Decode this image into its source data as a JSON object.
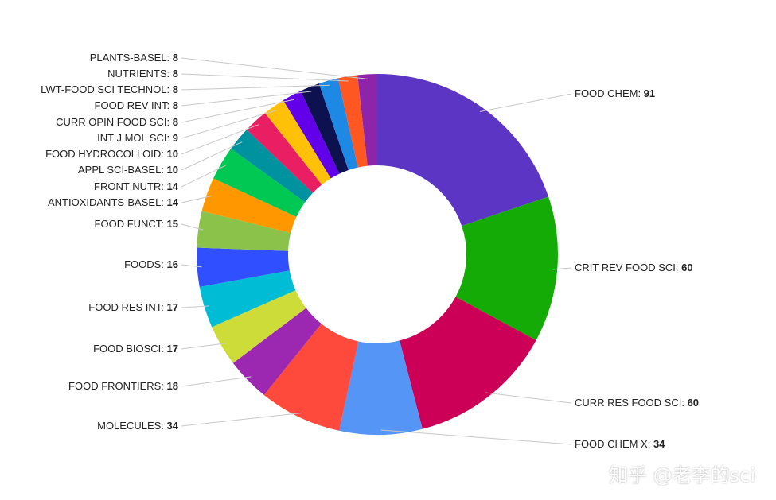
{
  "chart_data": {
    "type": "donut",
    "title": "",
    "slices": [
      {
        "label": "FOOD CHEM",
        "value": 91,
        "color": "#5c35c5"
      },
      {
        "label": "CRIT REV FOOD SCI",
        "value": 60,
        "color": "#15ab06"
      },
      {
        "label": "CURR RES FOOD SCI",
        "value": 60,
        "color": "#cc0056"
      },
      {
        "label": "FOOD CHEM X",
        "value": 34,
        "color": "#5595f5"
      },
      {
        "label": "MOLECULES",
        "value": 34,
        "color": "#fe4a3c"
      },
      {
        "label": "FOOD FRONTIERS",
        "value": 18,
        "color": "#9c27b0"
      },
      {
        "label": "FOOD BIOSCI",
        "value": 17,
        "color": "#cddc39"
      },
      {
        "label": "FOOD RES INT",
        "value": 17,
        "color": "#00bcd4"
      },
      {
        "label": "FOODS",
        "value": 16,
        "color": "#304ffe"
      },
      {
        "label": "FOOD FUNCT",
        "value": 15,
        "color": "#8bc34a"
      },
      {
        "label": "ANTIOXIDANTS-BASEL",
        "value": 14,
        "color": "#ff9800"
      },
      {
        "label": "FRONT NUTR",
        "value": 14,
        "color": "#00c853"
      },
      {
        "label": "APPL SCI-BASEL",
        "value": 10,
        "color": "#00939f"
      },
      {
        "label": "FOOD HYDROCOLLOID",
        "value": 10,
        "color": "#e91e63"
      },
      {
        "label": "INT J MOL SCI",
        "value": 9,
        "color": "#ffc107"
      },
      {
        "label": "CURR OPIN FOOD SCI",
        "value": 8,
        "color": "#6200ea"
      },
      {
        "label": "FOOD REV INT",
        "value": 8,
        "color": "#0d1150"
      },
      {
        "label": "LWT-FOOD SCI TECHNOL",
        "value": 8,
        "color": "#1e88e5"
      },
      {
        "label": "NUTRIENTS",
        "value": 8,
        "color": "#ff5722"
      },
      {
        "label": "PLANTS-BASEL",
        "value": 8,
        "color": "#8e24aa"
      }
    ]
  },
  "watermark": "知乎 @老李的sci"
}
